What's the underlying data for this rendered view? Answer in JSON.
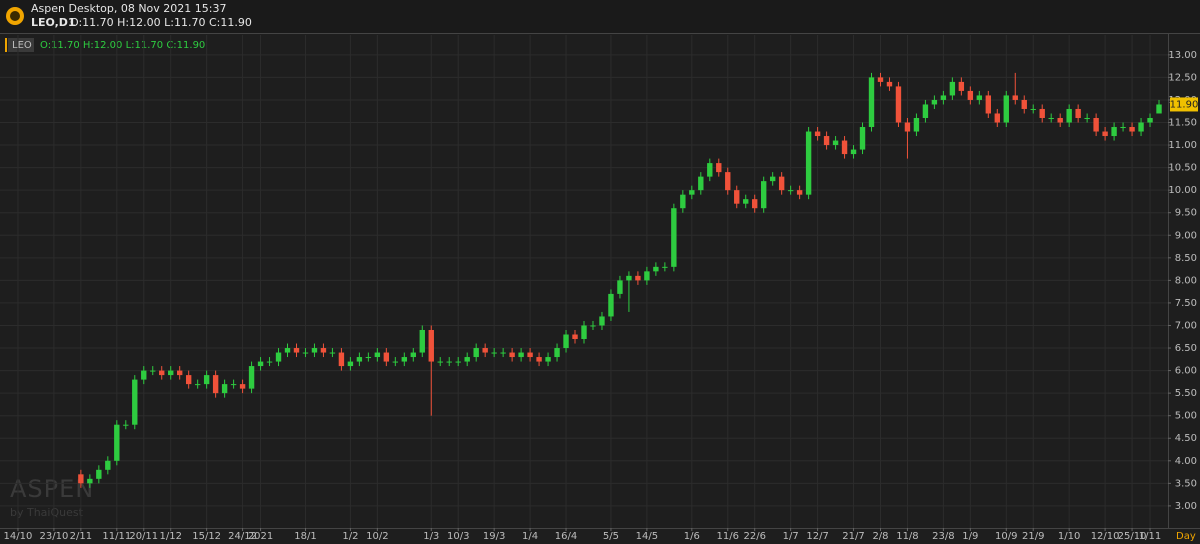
{
  "chart_data": {
    "type": "candlestick",
    "title": "Aspen Desktop, 08 Nov 2021 15:37",
    "symbol": "LEO,D1",
    "ohlc_text": "O:11.70 H:12.00 L:11.70 C:11.90",
    "legend_name": "LEO",
    "watermark": "ASPEN",
    "watermark_sub": "by ThaiQuest",
    "x_unit_label": "Day",
    "last_label": "11.90",
    "up_color": "#2ecc40",
    "down_color": "#f0523a",
    "grid": true,
    "open": [
      3.7,
      3.5,
      3.6,
      3.8,
      4.0,
      4.8,
      4.8,
      5.8,
      6.0,
      6.0,
      5.9,
      6.0,
      5.9,
      5.7,
      5.7,
      5.9,
      5.5,
      5.7,
      5.7,
      5.6,
      6.1,
      6.2,
      6.2,
      6.4,
      6.5,
      6.4,
      6.4,
      6.5,
      6.4,
      6.4,
      6.1,
      6.2,
      6.3,
      6.3,
      6.4,
      6.2,
      6.2,
      6.3,
      6.4,
      6.9,
      6.2,
      6.2,
      6.2,
      6.2,
      6.3,
      6.5,
      6.4,
      6.4,
      6.4,
      6.3,
      6.4,
      6.3,
      6.2,
      6.3,
      6.5,
      6.8,
      6.7,
      7.0,
      7.0,
      7.2,
      7.7,
      8.0,
      8.1,
      8.0,
      8.2,
      8.3,
      8.3,
      9.6,
      9.9,
      10.0,
      10.3,
      10.6,
      10.4,
      10.0,
      9.7,
      9.8,
      9.6,
      10.2,
      10.3,
      10.0,
      10.0,
      9.9,
      11.3,
      11.2,
      11.0,
      11.1,
      10.8,
      10.9,
      11.4,
      12.5,
      12.4,
      12.3,
      11.5,
      11.3,
      11.6,
      11.9,
      12.0,
      12.1,
      12.4,
      12.2,
      12.0,
      12.1,
      11.7,
      11.5,
      12.1,
      12.0,
      11.8,
      11.8,
      11.6,
      11.6,
      11.5,
      11.8,
      11.6,
      11.6,
      11.3,
      11.2,
      11.4,
      11.4,
      11.3,
      11.5,
      11.7
    ],
    "high": [
      3.8,
      3.7,
      3.9,
      4.1,
      4.9,
      4.9,
      5.9,
      6.1,
      6.1,
      6.1,
      6.1,
      6.1,
      6.0,
      5.8,
      6.0,
      6.0,
      5.8,
      5.8,
      5.8,
      6.2,
      6.3,
      6.3,
      6.5,
      6.6,
      6.6,
      6.5,
      6.6,
      6.6,
      6.5,
      6.5,
      6.3,
      6.4,
      6.4,
      6.5,
      6.5,
      6.3,
      6.4,
      6.5,
      7.0,
      7.0,
      6.3,
      6.3,
      6.3,
      6.4,
      6.6,
      6.6,
      6.5,
      6.5,
      6.5,
      6.5,
      6.5,
      6.4,
      6.4,
      6.6,
      6.9,
      6.9,
      7.1,
      7.1,
      7.3,
      7.8,
      8.1,
      8.2,
      8.2,
      8.3,
      8.4,
      8.4,
      9.7,
      10.0,
      10.1,
      10.4,
      10.7,
      10.7,
      10.5,
      10.1,
      9.9,
      9.9,
      10.3,
      10.4,
      10.4,
      10.1,
      10.1,
      11.4,
      11.4,
      11.3,
      11.2,
      11.2,
      11.0,
      11.5,
      12.6,
      12.6,
      12.5,
      12.4,
      11.6,
      11.7,
      12.0,
      12.1,
      12.2,
      12.5,
      12.5,
      12.3,
      12.2,
      12.2,
      11.8,
      12.2,
      12.6,
      12.1,
      11.9,
      11.9,
      11.7,
      11.7,
      11.9,
      11.9,
      11.7,
      11.7,
      11.4,
      11.5,
      11.5,
      11.5,
      11.6,
      11.7,
      12.0
    ],
    "low": [
      3.4,
      3.4,
      3.5,
      3.7,
      3.9,
      4.7,
      4.7,
      5.7,
      5.9,
      5.8,
      5.8,
      5.8,
      5.6,
      5.6,
      5.6,
      5.4,
      5.4,
      5.6,
      5.5,
      5.5,
      6.0,
      6.1,
      6.1,
      6.3,
      6.3,
      6.3,
      6.3,
      6.3,
      6.3,
      6.0,
      6.0,
      6.1,
      6.2,
      6.2,
      6.1,
      6.1,
      6.1,
      6.2,
      6.3,
      5.0,
      6.1,
      6.1,
      6.1,
      6.1,
      6.2,
      6.3,
      6.3,
      6.3,
      6.2,
      6.2,
      6.2,
      6.1,
      6.1,
      6.2,
      6.4,
      6.6,
      6.6,
      6.9,
      6.9,
      7.1,
      7.6,
      7.3,
      7.9,
      7.9,
      8.1,
      8.2,
      8.2,
      9.5,
      9.8,
      9.9,
      10.2,
      10.3,
      9.9,
      9.6,
      9.6,
      9.5,
      9.5,
      10.1,
      9.9,
      9.9,
      9.8,
      9.8,
      11.1,
      10.9,
      10.9,
      10.7,
      10.7,
      10.8,
      11.3,
      12.3,
      12.2,
      11.4,
      10.7,
      11.2,
      11.5,
      11.8,
      11.9,
      12.0,
      12.1,
      11.9,
      11.9,
      11.6,
      11.4,
      11.4,
      11.9,
      11.7,
      11.7,
      11.5,
      11.5,
      11.4,
      11.4,
      11.5,
      11.5,
      11.2,
      11.1,
      11.1,
      11.3,
      11.2,
      11.2,
      11.4,
      11.7
    ],
    "close": [
      3.5,
      3.6,
      3.8,
      4.0,
      4.8,
      4.8,
      5.8,
      6.0,
      6.0,
      5.9,
      6.0,
      5.9,
      5.7,
      5.7,
      5.9,
      5.5,
      5.7,
      5.7,
      5.6,
      6.1,
      6.2,
      6.2,
      6.4,
      6.5,
      6.4,
      6.4,
      6.5,
      6.4,
      6.4,
      6.1,
      6.2,
      6.3,
      6.3,
      6.4,
      6.2,
      6.2,
      6.3,
      6.4,
      6.9,
      6.2,
      6.2,
      6.2,
      6.2,
      6.3,
      6.5,
      6.4,
      6.4,
      6.4,
      6.3,
      6.4,
      6.3,
      6.2,
      6.3,
      6.5,
      6.8,
      6.7,
      7.0,
      7.0,
      7.2,
      7.7,
      8.0,
      8.1,
      8.0,
      8.2,
      8.3,
      8.3,
      9.6,
      9.9,
      10.0,
      10.3,
      10.6,
      10.4,
      10.0,
      9.7,
      9.8,
      9.6,
      10.2,
      10.3,
      10.0,
      10.0,
      9.9,
      11.3,
      11.2,
      11.0,
      11.1,
      10.8,
      10.9,
      11.4,
      12.5,
      12.4,
      12.3,
      11.5,
      11.3,
      11.6,
      11.9,
      12.0,
      12.1,
      12.4,
      12.2,
      12.0,
      12.1,
      11.7,
      11.5,
      12.1,
      12.0,
      11.8,
      11.8,
      11.6,
      11.6,
      11.5,
      11.8,
      11.6,
      11.6,
      11.3,
      11.2,
      11.4,
      11.4,
      11.3,
      11.5,
      11.6,
      11.9
    ],
    "xlim": [
      -9,
      121
    ],
    "xticks": [
      {
        "value": -7,
        "label": "14/10"
      },
      {
        "value": -3,
        "label": "23/10"
      },
      {
        "value": 0,
        "label": "2/11"
      },
      {
        "value": 4,
        "label": "11/11"
      },
      {
        "value": 7,
        "label": "20/11"
      },
      {
        "value": 10,
        "label": "1/12"
      },
      {
        "value": 14,
        "label": "15/12"
      },
      {
        "value": 18,
        "label": "24/12"
      },
      {
        "value": 20,
        "label": "2021"
      },
      {
        "value": 25,
        "label": "18/1"
      },
      {
        "value": 30,
        "label": "1/2"
      },
      {
        "value": 33,
        "label": "10/2"
      },
      {
        "value": 39,
        "label": "1/3"
      },
      {
        "value": 42,
        "label": "10/3"
      },
      {
        "value": 46,
        "label": "19/3"
      },
      {
        "value": 50,
        "label": "1/4"
      },
      {
        "value": 54,
        "label": "16/4"
      },
      {
        "value": 59,
        "label": "5/5"
      },
      {
        "value": 63,
        "label": "14/5"
      },
      {
        "value": 68,
        "label": "1/6"
      },
      {
        "value": 72,
        "label": "11/6"
      },
      {
        "value": 75,
        "label": "22/6"
      },
      {
        "value": 79,
        "label": "1/7"
      },
      {
        "value": 82,
        "label": "12/7"
      },
      {
        "value": 86,
        "label": "21/7"
      },
      {
        "value": 89,
        "label": "2/8"
      },
      {
        "value": 92,
        "label": "11/8"
      },
      {
        "value": 96,
        "label": "23/8"
      },
      {
        "value": 99,
        "label": "1/9"
      },
      {
        "value": 103,
        "label": "10/9"
      },
      {
        "value": 106,
        "label": "21/9"
      },
      {
        "value": 110,
        "label": "1/10"
      },
      {
        "value": 114,
        "label": "12/10"
      },
      {
        "value": 117,
        "label": "25/10"
      },
      {
        "value": 119,
        "label": "1/11"
      }
    ],
    "ylim": [
      2.51,
      13.44
    ],
    "yticks": [
      {
        "value": 3,
        "label": "3.00"
      },
      {
        "value": 3.5,
        "label": "3.50"
      },
      {
        "value": 4,
        "label": "4.00"
      },
      {
        "value": 4.5,
        "label": "4.50"
      },
      {
        "value": 5,
        "label": "5.00"
      },
      {
        "value": 5.5,
        "label": "5.50"
      },
      {
        "value": 6,
        "label": "6.00"
      },
      {
        "value": 6.5,
        "label": "6.50"
      },
      {
        "value": 7,
        "label": "7.00"
      },
      {
        "value": 7.5,
        "label": "7.50"
      },
      {
        "value": 8,
        "label": "8.00"
      },
      {
        "value": 8.5,
        "label": "8.50"
      },
      {
        "value": 9,
        "label": "9.00"
      },
      {
        "value": 9.5,
        "label": "9.50"
      },
      {
        "value": 10,
        "label": "10.00"
      },
      {
        "value": 10.5,
        "label": "10.50"
      },
      {
        "value": 11,
        "label": "11.00"
      },
      {
        "value": 11.5,
        "label": "11.50"
      },
      {
        "value": 12,
        "label": "12.00"
      },
      {
        "value": 12.5,
        "label": "12.50"
      },
      {
        "value": 13,
        "label": "13.00"
      }
    ]
  }
}
